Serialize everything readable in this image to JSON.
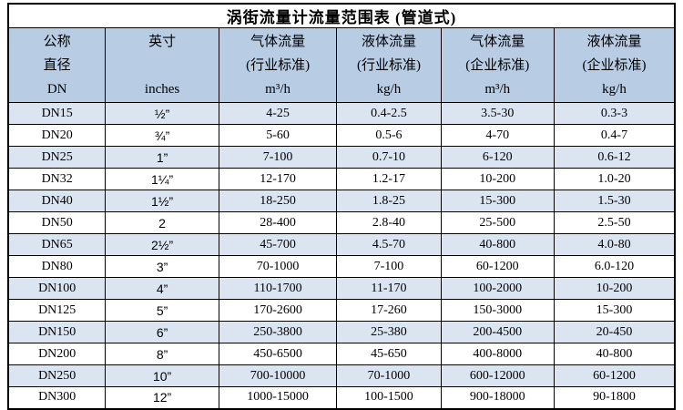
{
  "title": "涡街流量计流量范围表 (管道式)",
  "colors": {
    "header_bg": "#b8cce4",
    "alt_row_bg": "#dbe5f1",
    "border": "#000000",
    "text": "#000000"
  },
  "table": {
    "columns": [
      {
        "name": "nominal-diameter",
        "lines": [
          "公称",
          "直径",
          "DN"
        ]
      },
      {
        "name": "inches",
        "lines": [
          "英寸",
          "",
          "inches"
        ]
      },
      {
        "name": "gas-flow-industry",
        "lines": [
          "气体流量",
          "(行业标准)",
          "m³/h"
        ]
      },
      {
        "name": "liquid-flow-industry",
        "lines": [
          "液体流量",
          "(行业标准)",
          "kg/h"
        ]
      },
      {
        "name": "gas-flow-enterprise",
        "lines": [
          "气体流量",
          "(企业标准)",
          "m³/h"
        ]
      },
      {
        "name": "liquid-flow-enterprise",
        "lines": [
          "液体流量",
          "(企业标准)",
          "kg/h"
        ]
      }
    ],
    "rows": [
      [
        "DN15",
        "½”",
        "4-25",
        "0.4-2.5",
        "3.5-30",
        "0.3-3"
      ],
      [
        "DN20",
        "¾”",
        "5-60",
        "0.5-6",
        "4-70",
        "0.4-7"
      ],
      [
        "DN25",
        "1”",
        "7-100",
        "0.7-10",
        "6-120",
        "0.6-12"
      ],
      [
        "DN32",
        "1¼”",
        "12-170",
        "1.2-17",
        "10-200",
        "1.0-20"
      ],
      [
        "DN40",
        "1½”",
        "18-250",
        "1.8-25",
        "15-300",
        "1.5-30"
      ],
      [
        "DN50",
        "2",
        "28-400",
        "2.8-40",
        "25-500",
        "2.5-50"
      ],
      [
        "DN65",
        "2½”",
        "45-700",
        "4.5-70",
        "40-800",
        "4.0-80"
      ],
      [
        "DN80",
        "3”",
        "70-1000",
        "7-100",
        "60-1200",
        "6.0-120"
      ],
      [
        "DN100",
        "4”",
        "110-1700",
        "11-170",
        "100-2000",
        "10-200"
      ],
      [
        "DN125",
        "5”",
        "170-2600",
        "17-260",
        "150-3000",
        "15-300"
      ],
      [
        "DN150",
        "6”",
        "250-3800",
        "25-380",
        "200-4500",
        "20-450"
      ],
      [
        "DN200",
        "8”",
        "450-6500",
        "45-650",
        "400-8000",
        "40-800"
      ],
      [
        "DN250",
        "10”",
        "700-10000",
        "70-1000",
        "600-12000",
        "60-1200"
      ],
      [
        "DN300",
        "12”",
        "1000-15000",
        "100-1500",
        "900-18000",
        "90-1800"
      ]
    ]
  }
}
